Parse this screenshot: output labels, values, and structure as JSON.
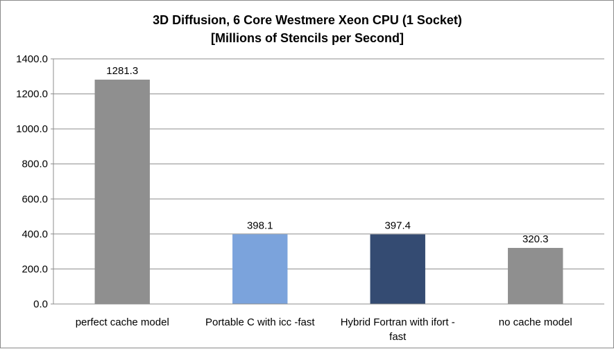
{
  "chart_data": {
    "type": "bar",
    "title": [
      "3D Diffusion, 6 Core Westmere Xeon CPU (1 Socket)",
      "[Millions of Stencils per Second]"
    ],
    "categories": [
      [
        "perfect cache model"
      ],
      [
        "Portable C with icc -fast"
      ],
      [
        "Hybrid Fortran with ifort -",
        "fast"
      ],
      [
        "no cache model"
      ]
    ],
    "values": [
      1281.3,
      398.1,
      397.4,
      320.3
    ],
    "value_labels": [
      "1281.3",
      "398.1",
      "397.4",
      "320.3"
    ],
    "colors": [
      "#8f8f8f",
      "#7ba3dc",
      "#344b72",
      "#8f8f8f"
    ],
    "ylim": [
      0,
      1400
    ],
    "yticks": [
      0,
      200,
      400,
      600,
      800,
      1000,
      1200,
      1400
    ],
    "ytick_labels": [
      "0.0",
      "200.0",
      "400.0",
      "600.0",
      "800.0",
      "1000.0",
      "1200.0",
      "1400.0"
    ],
    "grid": true,
    "legend": "none",
    "xlabel": "",
    "ylabel": ""
  }
}
